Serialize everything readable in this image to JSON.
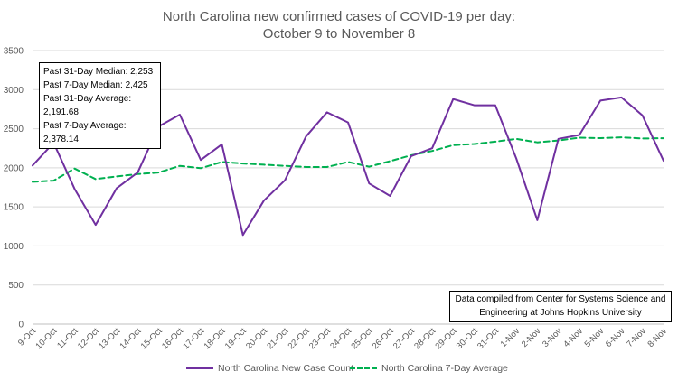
{
  "chart_data": {
    "type": "line",
    "title_lines": [
      "North Carolina new confirmed cases of COVID-19 per day:",
      "October 9 to November 8"
    ],
    "categories": [
      "9-Oct",
      "10-Oct",
      "11-Oct",
      "12-Oct",
      "13-Oct",
      "14-Oct",
      "15-Oct",
      "16-Oct",
      "17-Oct",
      "18-Oct",
      "19-Oct",
      "20-Oct",
      "21-Oct",
      "22-Oct",
      "23-Oct",
      "24-Oct",
      "25-Oct",
      "26-Oct",
      "27-Oct",
      "28-Oct",
      "29-Oct",
      "30-Oct",
      "31-Oct",
      "1-Nov",
      "2-Nov",
      "3-Nov",
      "4-Nov",
      "5-Nov",
      "6-Nov",
      "7-Nov",
      "8-Nov"
    ],
    "series": [
      {
        "name": "North Carolina New Case Count",
        "color": "#7030A0",
        "dash": "solid",
        "values": [
          2030,
          2320,
          1730,
          1270,
          1740,
          1940,
          2530,
          2680,
          2100,
          2300,
          1140,
          1580,
          1840,
          2400,
          2710,
          2580,
          1800,
          1640,
          2150,
          2250,
          2880,
          2800,
          2800,
          2120,
          1330,
          2370,
          2420,
          2860,
          2900,
          2670,
          2090
        ]
      },
      {
        "name": "North Carolina 7-Day Average",
        "color": "#00B050",
        "dash": "dashed",
        "values": [
          1820,
          1835,
          1990,
          1855,
          1890,
          1920,
          1940,
          2025,
          1995,
          2075,
          2055,
          2040,
          2025,
          2010,
          2010,
          2075,
          2015,
          2085,
          2160,
          2215,
          2290,
          2305,
          2335,
          2370,
          2325,
          2350,
          2385,
          2380,
          2390,
          2375,
          2378
        ]
      }
    ],
    "ylim": [
      0,
      3500
    ],
    "yticks": [
      0,
      500,
      1000,
      1500,
      2000,
      2500,
      3000,
      3500
    ],
    "ytick_labels": [
      "0",
      "500",
      "1000",
      "1500",
      "2000",
      "2500",
      "3000",
      "3500"
    ],
    "grid": true,
    "legend_position": "bottom"
  },
  "stats_box": [
    "Past 31-Day Median: 2,253",
    "Past 7-Day Median: 2,425",
    "Past 31-Day Average: 2,191.68",
    "Past 7-Day Average: 2,378.14"
  ],
  "source_note": [
    "Data compiled from Center for Systems Science and",
    "Engineering at Johns Hopkins University"
  ],
  "colors": {
    "gridline": "#d9d9d9",
    "axis_text": "#595959"
  }
}
